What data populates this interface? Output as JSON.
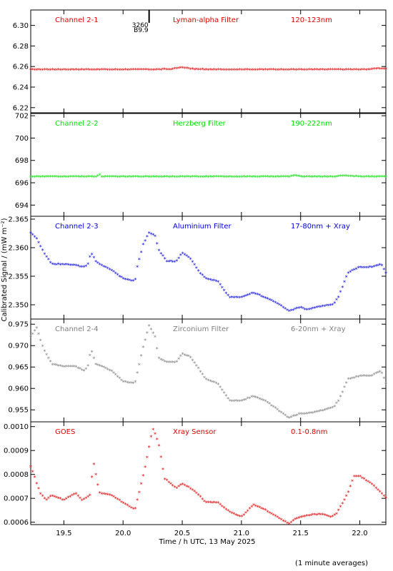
{
  "figure": {
    "xlabel": "Time / h UTC, 13 May 2025",
    "ylabel": "Calibrated Signal / (mW m⁻²)",
    "footnote": "(1 minute averages)",
    "xlim": [
      19.22,
      22.22
    ],
    "xticks": [
      19.5,
      20.0,
      20.5,
      21.0,
      21.5,
      22.0
    ],
    "xtick_labels": [
      "19.5",
      "20.0",
      "20.5",
      "21.0",
      "21.5",
      "22.0"
    ],
    "marker": {
      "x_hours": 20.22,
      "labels": [
        "3260",
        "B9.9"
      ]
    }
  },
  "chart_data": [
    {
      "type": "scatter",
      "name": "Channel 2-1",
      "labels": [
        "Channel 2-1",
        "Lyman-alpha Filter",
        "120-123nm"
      ],
      "color": "#e00000",
      "ylim": [
        6.215,
        6.315
      ],
      "yticks": [
        6.22,
        6.24,
        6.26,
        6.28,
        6.3
      ],
      "ytick_labels": [
        "6.22",
        "6.24",
        "6.26",
        "6.28",
        "6.30"
      ],
      "x": [
        19.22,
        19.5,
        19.75,
        20.0,
        20.25,
        20.4,
        20.5,
        20.6,
        20.75,
        21.0,
        21.25,
        21.5,
        21.75,
        22.0,
        22.1,
        22.15,
        22.22
      ],
      "values": [
        6.2565,
        6.2565,
        6.2565,
        6.2565,
        6.2565,
        6.2568,
        6.2585,
        6.2568,
        6.2565,
        6.2565,
        6.2565,
        6.2565,
        6.2565,
        6.2565,
        6.2568,
        6.2578,
        6.2572
      ]
    },
    {
      "type": "scatter",
      "name": "Channel 2-2",
      "labels": [
        "Channel 2-2",
        "Herzberg Filter",
        "190-222nm"
      ],
      "color": "#00e000",
      "ylim": [
        693.0,
        702.2
      ],
      "yticks": [
        694,
        696,
        698,
        700,
        702
      ],
      "ytick_labels": [
        "694",
        "696",
        "698",
        "700",
        "702"
      ],
      "x": [
        19.22,
        19.5,
        19.78,
        19.8,
        19.82,
        20.0,
        20.5,
        21.0,
        21.4,
        21.45,
        21.5,
        21.8,
        21.85,
        22.0,
        22.22
      ],
      "values": [
        696.5,
        696.5,
        696.5,
        696.7,
        696.5,
        696.5,
        696.5,
        696.5,
        696.5,
        696.6,
        696.5,
        696.5,
        696.6,
        696.5,
        696.5
      ]
    },
    {
      "type": "scatter",
      "name": "Channel 2-3",
      "labels": [
        "Channel 2-3",
        "Aluminium Filter",
        "17-80nm + Xray"
      ],
      "color": "#0000dd",
      "ylim": [
        2.3475,
        2.3655
      ],
      "yticks": [
        2.35,
        2.355,
        2.36,
        2.365
      ],
      "ytick_labels": [
        "2.350",
        "2.355",
        "2.360",
        "2.365"
      ],
      "x": [
        19.22,
        19.27,
        19.33,
        19.4,
        19.5,
        19.6,
        19.67,
        19.7,
        19.73,
        19.77,
        19.82,
        19.9,
        20.0,
        20.1,
        20.12,
        20.17,
        20.22,
        20.27,
        20.3,
        20.37,
        20.45,
        20.5,
        20.57,
        20.65,
        20.7,
        20.8,
        20.85,
        20.9,
        21.0,
        21.1,
        21.2,
        21.3,
        21.4,
        21.5,
        21.55,
        21.65,
        21.78,
        21.82,
        21.9,
        22.0,
        22.1,
        22.18,
        22.22
      ],
      "values": [
        2.3625,
        2.3615,
        2.359,
        2.357,
        2.357,
        2.3568,
        2.3565,
        2.3568,
        2.359,
        2.3575,
        2.3568,
        2.356,
        2.3545,
        2.354,
        2.3565,
        2.3605,
        2.3625,
        2.362,
        2.3595,
        2.3575,
        2.3575,
        2.359,
        2.358,
        2.3555,
        2.3545,
        2.354,
        2.3525,
        2.3512,
        2.3512,
        2.352,
        2.3512,
        2.3502,
        2.3488,
        2.3495,
        2.349,
        2.3495,
        2.35,
        2.3513,
        2.3555,
        2.3565,
        2.3565,
        2.357,
        2.3555
      ]
    },
    {
      "type": "scatter",
      "name": "Channel 2-4",
      "labels": [
        "Channel 2-4",
        "Zirconium Filter",
        "6-20nm + Xray"
      ],
      "color": "#808080",
      "ylim": [
        0.9522,
        0.9762
      ],
      "yticks": [
        0.955,
        0.96,
        0.965,
        0.97,
        0.975
      ],
      "ytick_labels": [
        "0.955",
        "0.960",
        "0.965",
        "0.970",
        "0.975"
      ],
      "x": [
        19.22,
        19.27,
        19.33,
        19.4,
        19.5,
        19.6,
        19.67,
        19.7,
        19.73,
        19.77,
        19.82,
        19.9,
        20.0,
        20.1,
        20.12,
        20.17,
        20.22,
        20.27,
        20.3,
        20.37,
        20.45,
        20.5,
        20.57,
        20.65,
        20.7,
        20.8,
        20.85,
        20.9,
        21.0,
        21.1,
        21.2,
        21.3,
        21.4,
        21.5,
        21.55,
        21.65,
        21.78,
        21.82,
        21.9,
        22.0,
        22.1,
        22.18,
        22.22
      ],
      "values": [
        0.972,
        0.974,
        0.969,
        0.9655,
        0.965,
        0.965,
        0.964,
        0.9648,
        0.969,
        0.9655,
        0.965,
        0.964,
        0.9615,
        0.961,
        0.9635,
        0.9695,
        0.9745,
        0.972,
        0.967,
        0.966,
        0.966,
        0.968,
        0.9672,
        0.964,
        0.962,
        0.961,
        0.959,
        0.957,
        0.957,
        0.958,
        0.957,
        0.955,
        0.953,
        0.954,
        0.954,
        0.9545,
        0.9555,
        0.957,
        0.962,
        0.9628,
        0.9628,
        0.964,
        0.961
      ]
    },
    {
      "type": "scatter",
      "name": "GOES",
      "labels": [
        "GOES",
        "Xray Sensor",
        "0.1-0.8nm"
      ],
      "color": "#e00000",
      "ylim": [
        0.00059,
        0.00102
      ],
      "yticks": [
        0.0006,
        0.0007,
        0.0008,
        0.0009,
        0.001
      ],
      "ytick_labels": [
        "0.0006",
        "0.0007",
        "0.0008",
        "0.0009",
        "0.0010"
      ],
      "x": [
        19.22,
        19.25,
        19.3,
        19.35,
        19.4,
        19.5,
        19.6,
        19.65,
        19.72,
        19.75,
        19.8,
        19.9,
        20.0,
        20.1,
        20.15,
        20.2,
        20.25,
        20.3,
        20.35,
        20.45,
        20.5,
        20.6,
        20.7,
        20.8,
        20.9,
        21.0,
        21.1,
        21.2,
        21.3,
        21.4,
        21.45,
        21.5,
        21.6,
        21.7,
        21.75,
        21.8,
        21.9,
        21.95,
        22.0,
        22.1,
        22.22
      ],
      "values": [
        0.00083,
        0.00079,
        0.00072,
        0.00069,
        0.00071,
        0.00069,
        0.00072,
        0.00069,
        0.00071,
        0.00085,
        0.00072,
        0.00071,
        0.00068,
        0.00065,
        0.00075,
        0.00086,
        0.00099,
        0.00093,
        0.00078,
        0.00074,
        0.00076,
        0.00073,
        0.00068,
        0.00068,
        0.00064,
        0.00062,
        0.00067,
        0.00065,
        0.00062,
        0.00059,
        0.00061,
        0.00062,
        0.00063,
        0.00063,
        0.00062,
        0.00063,
        0.00072,
        0.00079,
        0.00079,
        0.00076,
        0.0007
      ]
    }
  ]
}
